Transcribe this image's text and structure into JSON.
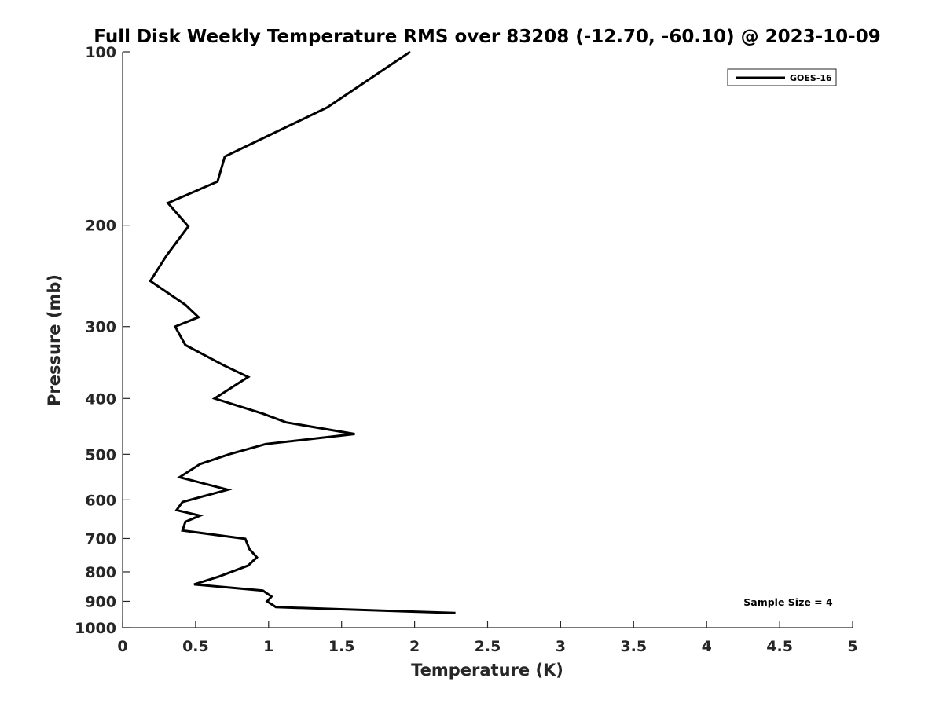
{
  "chart_data": {
    "type": "line",
    "title": "Full Disk Weekly Temperature RMS over 83208 (-12.70, -60.10) @ 2023-10-09",
    "xlabel": "Temperature (K)",
    "ylabel": "Pressure (mb)",
    "xlim": [
      0,
      5
    ],
    "ylim": [
      100,
      1000
    ],
    "y_scale": "log",
    "y_reversed": true,
    "grid": false,
    "legend_position": "top-right",
    "x_ticks": [
      "0",
      "0.5",
      "1",
      "1.5",
      "2",
      "2.5",
      "3",
      "3.5",
      "4",
      "4.5",
      "5"
    ],
    "y_ticks": [
      "100",
      "200",
      "300",
      "400",
      "500",
      "600",
      "700",
      "800",
      "900",
      "1000"
    ],
    "series": [
      {
        "name": "GOES-16",
        "color": "#000000",
        "points": [
          [
            1.97,
            100
          ],
          [
            1.4,
            125
          ],
          [
            0.7,
            152
          ],
          [
            0.65,
            168
          ],
          [
            0.31,
            183
          ],
          [
            0.45,
            201
          ],
          [
            0.3,
            226
          ],
          [
            0.19,
            250
          ],
          [
            0.43,
            275
          ],
          [
            0.52,
            289
          ],
          [
            0.36,
            300
          ],
          [
            0.43,
            323
          ],
          [
            0.69,
            350
          ],
          [
            0.86,
            367
          ],
          [
            0.63,
            400
          ],
          [
            0.96,
            425
          ],
          [
            1.12,
            440
          ],
          [
            1.59,
            461
          ],
          [
            0.98,
            480
          ],
          [
            0.73,
            500
          ],
          [
            0.53,
            520
          ],
          [
            0.39,
            548
          ],
          [
            0.72,
            576
          ],
          [
            0.41,
            605
          ],
          [
            0.37,
            625
          ],
          [
            0.53,
            639
          ],
          [
            0.43,
            655
          ],
          [
            0.41,
            678
          ],
          [
            0.84,
            701
          ],
          [
            0.87,
            731
          ],
          [
            0.92,
            755
          ],
          [
            0.86,
            780
          ],
          [
            0.66,
            815
          ],
          [
            0.49,
            841
          ],
          [
            0.96,
            862
          ],
          [
            1.02,
            883
          ],
          [
            0.99,
            900
          ],
          [
            1.05,
            921
          ],
          [
            2.28,
            943
          ]
        ]
      }
    ],
    "annotation": "Sample Size = 4"
  }
}
